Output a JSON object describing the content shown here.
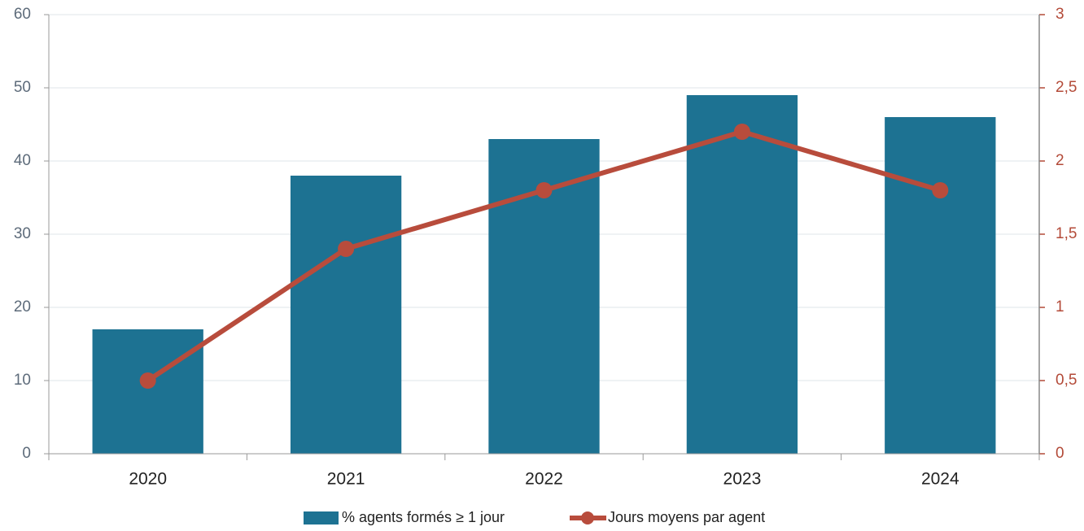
{
  "chart_data": {
    "type": "combo",
    "categories": [
      "2020",
      "2021",
      "2022",
      "2023",
      "2024"
    ],
    "series": [
      {
        "name": "% agents formés ≥ 1 jour",
        "type": "bar",
        "color": "#1d7292",
        "values": [
          17,
          38,
          43,
          49,
          46
        ]
      },
      {
        "name": "Jours moyens par agent",
        "type": "line",
        "axis": "y2",
        "color": "#b84c3c",
        "values": [
          0.5,
          1.4,
          1.8,
          2.2,
          1.8
        ]
      }
    ],
    "ylim": [
      0,
      60
    ],
    "yticks": [
      0,
      10,
      20,
      30,
      40,
      50,
      60
    ],
    "y2lim": [
      0,
      3
    ],
    "y2ticks": [
      0,
      {
        "value": 0.5,
        "label": "0,5"
      },
      1,
      {
        "value": 1.5,
        "label": "1,5"
      },
      2,
      {
        "value": 2.5,
        "label": "2,5"
      },
      3
    ],
    "grid": true,
    "legend": "bottom"
  }
}
